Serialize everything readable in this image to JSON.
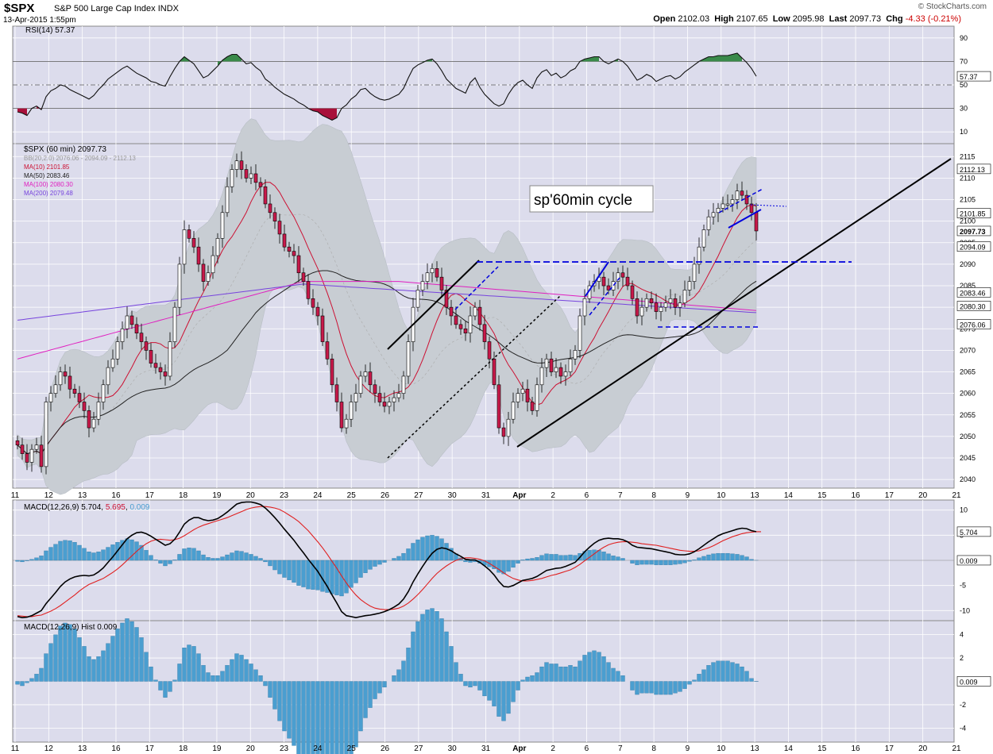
{
  "header": {
    "symbol": "$SPX",
    "name": "S&P 500 Large Cap Index",
    "exchange": "INDX",
    "datetime": "13-Apr-2015 1:55pm",
    "watermark": "© StockCharts.com",
    "open_label": "Open",
    "open": "2102.03",
    "high_label": "High",
    "high": "2107.65",
    "low_label": "Low",
    "low": "2095.98",
    "last_label": "Last",
    "last": "2097.73",
    "chg_label": "Chg",
    "chg": "-4.33 (-0.21%)"
  },
  "colors": {
    "panel_bg": "#dcdcec",
    "bollinger": "#c8cdd3",
    "up": "#ffffff",
    "down": "#c8194a",
    "ma10": "#cc1133",
    "ma50": "#222222",
    "ma100": "#e020c0",
    "ma200": "#7744dd",
    "macd_hist": "#4a9ed0",
    "rsi_fill": "#a8103a",
    "annot_blue": "#0000dd"
  },
  "rsi_panel": {
    "legend": "RSI(14) 57.37",
    "ticks": [
      "90",
      "70",
      "50",
      "30",
      "10"
    ],
    "value_label": "57.37"
  },
  "price_panel": {
    "legend": "$SPX (60 min) 2097.73",
    "overlays": [
      "BB(20,2.0) 2076.06 - 2094.09 - 2112.13",
      "MA(10) 2101.85",
      "MA(50) 2083.46",
      "MA(100) 2080.30",
      "MA(200) 2079.48"
    ],
    "ticks": [
      "2115",
      "2110",
      "2105",
      "2100",
      "2095",
      "2090",
      "2085",
      "2080",
      "2075",
      "2070",
      "2065",
      "2060",
      "2055",
      "2050",
      "2045",
      "2040"
    ],
    "value_labels": [
      "2112.13",
      "2101.85",
      "2097.73",
      "2094.09",
      "2083.46",
      "2080.30",
      "2076.06"
    ],
    "annotation": "sp'60min cycle"
  },
  "x_labels": [
    "11",
    "12",
    "13",
    "16",
    "17",
    "18",
    "19",
    "20",
    "23",
    "24",
    "25",
    "26",
    "27",
    "30",
    "31",
    "Apr",
    "2",
    "6",
    "7",
    "8",
    "9",
    "10",
    "13",
    "14",
    "15",
    "16",
    "17",
    "20",
    "21"
  ],
  "macd_panel": {
    "legend_name": "MACD(12,26,9)",
    "legend_macd": "5.704",
    "legend_signal": "5.695",
    "legend_hist": "0.009",
    "ticks": [
      "10",
      "5",
      "-5",
      "-10"
    ],
    "value_labels": [
      "5.704",
      "0.009"
    ]
  },
  "hist_panel": {
    "legend": "MACD(12,26,9) Hist 0.009",
    "ticks": [
      "4",
      "2",
      "-2",
      "-4"
    ],
    "value_label": "0.009"
  },
  "chart_data": {
    "type": "candlestick",
    "title": "$SPX S&P 500 Large Cap Index (60 min)",
    "close": [
      2048,
      2046,
      2044,
      2047,
      2048,
      2043,
      2058,
      2060,
      2062,
      2065,
      2064,
      2061,
      2060,
      2058,
      2056,
      2052,
      2054,
      2058,
      2062,
      2066,
      2068,
      2072,
      2075,
      2078,
      2076,
      2074,
      2072,
      2070,
      2067,
      2066,
      2065,
      2064,
      2072,
      2080,
      2090,
      2098,
      2096,
      2094,
      2090,
      2086,
      2088,
      2092,
      2096,
      2102,
      2108,
      2112,
      2114,
      2112,
      2110,
      2111,
      2109,
      2108,
      2104,
      2102,
      2100,
      2097,
      2094,
      2093,
      2092,
      2088,
      2086,
      2082,
      2080,
      2078,
      2072,
      2068,
      2062,
      2058,
      2052,
      2054,
      2058,
      2060,
      2064,
      2065,
      2062,
      2060,
      2058,
      2057,
      2058,
      2059,
      2060,
      2064,
      2072,
      2080,
      2084,
      2086,
      2088,
      2089,
      2087,
      2084,
      2080,
      2078,
      2076,
      2075,
      2074,
      2078,
      2080,
      2076,
      2072,
      2068,
      2062,
      2052,
      2050,
      2054,
      2058,
      2060,
      2061,
      2058,
      2056,
      2062,
      2066,
      2068,
      2065,
      2066,
      2064,
      2065,
      2068,
      2070,
      2078,
      2082,
      2085,
      2086,
      2087,
      2085,
      2084,
      2086,
      2088,
      2087,
      2085,
      2082,
      2078,
      2080,
      2082,
      2081,
      2079,
      2080,
      2081,
      2082,
      2080,
      2081,
      2084,
      2086,
      2090,
      2094,
      2098,
      2101,
      2102,
      2103,
      2104,
      2104,
      2105,
      2107,
      2106,
      2104,
      2102,
      2097.73
    ],
    "x_day_labels": [
      "11",
      "12",
      "13",
      "16",
      "17",
      "18",
      "19",
      "20",
      "23",
      "24",
      "25",
      "26",
      "27",
      "30",
      "31",
      "Apr",
      "2",
      "6",
      "7",
      "8",
      "9",
      "10",
      "13",
      "14",
      "15",
      "16",
      "17",
      "20",
      "21"
    ],
    "price_ylim": [
      2038,
      2118
    ],
    "open": 2102.03,
    "high": 2107.65,
    "low": 2095.98,
    "last": 2097.73,
    "bollinger": {
      "lower": 2076.06,
      "middle": 2094.09,
      "upper": 2112.13
    },
    "ma": {
      "MA(10)": 2101.85,
      "MA(50)": 2083.46,
      "MA(100)": 2080.3,
      "MA(200)": 2079.48
    },
    "rsi": {
      "period": 14,
      "last": 57.37,
      "ylim": [
        0,
        100
      ],
      "values": [
        27,
        26,
        24,
        30,
        32,
        29,
        40,
        45,
        47,
        50,
        49,
        46,
        44,
        42,
        40,
        38,
        41,
        46,
        50,
        55,
        58,
        61,
        64,
        66,
        63,
        60,
        58,
        56,
        53,
        52,
        50,
        49,
        57,
        64,
        70,
        74,
        71,
        68,
        62,
        56,
        58,
        62,
        66,
        71,
        74,
        76,
        76,
        72,
        68,
        69,
        65,
        62,
        55,
        52,
        48,
        45,
        42,
        40,
        38,
        35,
        33,
        30,
        28,
        27,
        24,
        22,
        20,
        22,
        30,
        33,
        38,
        41,
        46,
        47,
        43,
        40,
        38,
        37,
        38,
        40,
        42,
        47,
        56,
        64,
        67,
        69,
        71,
        72,
        68,
        62,
        55,
        51,
        47,
        45,
        43,
        52,
        56,
        48,
        42,
        38,
        34,
        32,
        34,
        42,
        48,
        52,
        54,
        50,
        47,
        56,
        61,
        63,
        58,
        60,
        56,
        58,
        62,
        64,
        70,
        72,
        73,
        74,
        74,
        70,
        68,
        70,
        72,
        70,
        66,
        60,
        54,
        56,
        59,
        57,
        53,
        55,
        57,
        58,
        55,
        57,
        61,
        64,
        67,
        70,
        72,
        74,
        74,
        75,
        75,
        75,
        76,
        77,
        73,
        69,
        64,
        57.37
      ]
    },
    "macd": {
      "params": "12,26,9",
      "macd_last": 5.704,
      "signal_last": 5.695,
      "hist_last": 0.009,
      "ylim": [
        -12,
        12
      ],
      "macd": [
        -11.2,
        -11.4,
        -11.3,
        -11.0,
        -10.5,
        -10.0,
        -8.6,
        -7.5,
        -6.4,
        -5.2,
        -4.3,
        -3.7,
        -3.3,
        -3.1,
        -3.0,
        -3.1,
        -2.9,
        -2.3,
        -1.5,
        -0.4,
        0.7,
        1.9,
        3.1,
        4.3,
        5.0,
        5.5,
        5.6,
        5.3,
        4.8,
        4.2,
        3.6,
        3.0,
        3.3,
        4.2,
        5.6,
        7.2,
        8.0,
        8.5,
        8.5,
        8.1,
        7.9,
        8.0,
        8.3,
        8.9,
        9.6,
        10.4,
        11.2,
        11.5,
        11.6,
        11.6,
        11.4,
        11.1,
        10.4,
        9.5,
        8.5,
        7.4,
        6.2,
        5.1,
        4.0,
        2.7,
        1.5,
        0.2,
        -1.0,
        -2.2,
        -3.7,
        -5.2,
        -6.9,
        -8.5,
        -10.2,
        -11.0,
        -11.2,
        -11.4,
        -11.2,
        -11.0,
        -10.9,
        -10.7,
        -10.5,
        -10.2,
        -9.8,
        -9.3,
        -8.7,
        -7.7,
        -6.2,
        -4.3,
        -2.7,
        -1.2,
        0.2,
        1.4,
        2.2,
        2.5,
        2.3,
        1.9,
        1.3,
        0.8,
        0.2,
        0.1,
        0.1,
        -0.4,
        -1.1,
        -1.9,
        -2.9,
        -4.2,
        -5.2,
        -5.3,
        -5.0,
        -4.5,
        -4.0,
        -3.8,
        -3.6,
        -3.2,
        -2.6,
        -2.0,
        -1.8,
        -1.6,
        -1.5,
        -1.2,
        -0.8,
        -0.4,
        0.6,
        1.7,
        2.6,
        3.4,
        4.0,
        4.3,
        4.4,
        4.3,
        4.3,
        4.1,
        3.7,
        3.0,
        2.6,
        2.5,
        2.4,
        2.3,
        2.1,
        1.9,
        1.7,
        1.5,
        1.2,
        1.1,
        1.1,
        1.3,
        1.7,
        2.3,
        3.0,
        3.7,
        4.3,
        4.9,
        5.3,
        5.6,
        5.9,
        6.2,
        6.4,
        6.3,
        5.9,
        5.704
      ],
      "signal": [
        -11.0,
        -11.1,
        -11.2,
        -11.2,
        -11.0,
        -10.9,
        -10.5,
        -10.1,
        -9.6,
        -9.0,
        -8.3,
        -7.6,
        -6.9,
        -6.1,
        -5.4,
        -4.8,
        -4.4,
        -4.0,
        -3.6,
        -3.0,
        -2.4,
        -1.7,
        -0.9,
        0.0,
        0.9,
        1.8,
        2.6,
        3.3,
        3.8,
        4.1,
        4.2,
        4.1,
        4.0,
        4.1,
        4.4,
        4.9,
        5.5,
        6.1,
        6.6,
        7.0,
        7.3,
        7.6,
        7.9,
        8.2,
        8.5,
        8.9,
        9.3,
        9.7,
        10.1,
        10.4,
        10.6,
        10.7,
        10.7,
        10.6,
        10.4,
        10.1,
        9.6,
        9.0,
        8.4,
        7.7,
        6.8,
        5.9,
        4.8,
        3.7,
        2.5,
        1.2,
        -0.2,
        -1.6,
        -3.1,
        -4.5,
        -5.8,
        -6.9,
        -7.8,
        -8.5,
        -9.1,
        -9.5,
        -9.7,
        -9.8,
        -9.8,
        -9.7,
        -9.5,
        -9.1,
        -8.5,
        -7.7,
        -6.8,
        -5.8,
        -4.7,
        -3.6,
        -2.6,
        -1.8,
        -1.1,
        -0.5,
        0.0,
        0.3,
        0.5,
        0.5,
        0.4,
        0.2,
        -0.1,
        -0.6,
        -1.2,
        -1.8,
        -2.5,
        -3.1,
        -3.6,
        -3.9,
        -4.1,
        -4.1,
        -4.0,
        -3.8,
        -3.6,
        -3.3,
        -3.0,
        -2.8,
        -2.5,
        -2.2,
        -1.9,
        -1.4,
        -0.8,
        -0.1,
        0.6,
        1.3,
        2.0,
        2.6,
        3.1,
        3.4,
        3.6,
        3.7,
        3.7,
        3.6,
        3.5,
        3.3,
        3.2,
        3.1,
        3.0,
        2.8,
        2.6,
        2.4,
        2.2,
        2.0,
        1.9,
        1.8,
        1.8,
        1.9,
        2.2,
        2.5,
        2.9,
        3.4,
        3.9,
        4.3,
        4.7,
        5.0,
        5.3,
        5.5,
        5.6,
        5.7,
        5.695
      ],
      "hist": [
        -0.2,
        -0.3,
        -0.1,
        0.2,
        0.5,
        0.9,
        1.9,
        2.6,
        3.2,
        3.8,
        4.0,
        3.9,
        3.6,
        3.0,
        2.4,
        1.7,
        1.5,
        1.7,
        2.1,
        2.6,
        3.1,
        3.6,
        4.0,
        4.3,
        4.1,
        3.7,
        3.0,
        2.0,
        1.0,
        0.1,
        -0.6,
        -1.1,
        -0.7,
        0.1,
        1.2,
        2.3,
        2.5,
        2.4,
        1.9,
        1.1,
        0.6,
        0.4,
        0.4,
        0.7,
        1.1,
        1.5,
        1.9,
        1.8,
        1.5,
        1.2,
        0.8,
        0.4,
        -0.3,
        -1.1,
        -1.9,
        -2.7,
        -3.4,
        -3.9,
        -4.4,
        -5.0,
        -5.3,
        -5.7,
        -5.8,
        -5.9,
        -6.2,
        -6.4,
        -6.7,
        -6.9,
        -7.1,
        -6.5,
        -5.4,
        -4.5,
        -3.4,
        -2.5,
        -1.8,
        -1.2,
        -0.8,
        -0.4,
        0.0,
        0.4,
        0.8,
        1.4,
        2.3,
        3.4,
        4.1,
        4.6,
        4.9,
        5.0,
        4.8,
        4.3,
        3.4,
        2.4,
        1.3,
        0.5,
        -0.3,
        -0.4,
        -0.3,
        -0.6,
        -1.0,
        -1.3,
        -1.7,
        -2.4,
        -2.7,
        -2.2,
        -1.4,
        -0.6,
        0.1,
        0.3,
        0.4,
        0.6,
        1.0,
        1.3,
        1.2,
        1.2,
        1.0,
        1.0,
        1.1,
        1.0,
        1.4,
        1.8,
        2.0,
        2.1,
        2.0,
        1.7,
        1.3,
        0.9,
        0.7,
        0.4,
        0.0,
        -0.6,
        -0.9,
        -0.8,
        -0.8,
        -0.8,
        -0.9,
        -0.9,
        -0.9,
        -0.9,
        -0.8,
        -0.7,
        -0.5,
        -0.2,
        0.1,
        0.5,
        0.8,
        1.1,
        1.3,
        1.4,
        1.4,
        1.4,
        1.3,
        1.2,
        1.0,
        0.7,
        0.2,
        0.009
      ]
    }
  }
}
